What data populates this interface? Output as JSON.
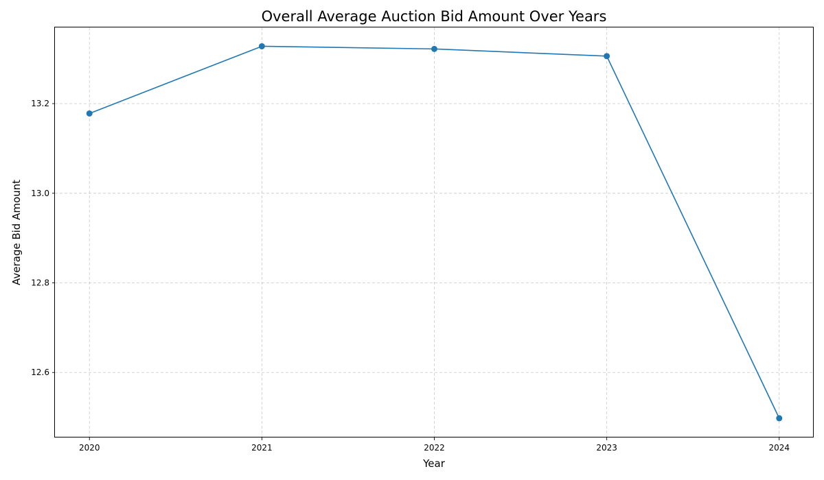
{
  "chart_data": {
    "type": "line",
    "title": "Overall Average Auction Bid Amount Over Years",
    "xlabel": "Year",
    "ylabel": "Average Bid Amount",
    "x": [
      "2020",
      "2021",
      "2022",
      "2023",
      "2024"
    ],
    "series": [
      {
        "values": [
          13.178,
          13.328,
          13.322,
          13.306,
          12.498
        ],
        "color": "#1f77b4"
      }
    ],
    "xlim": [
      -0.2,
      4.2
    ],
    "ylim": [
      12.455,
      13.37
    ],
    "yticks": [
      "12.6",
      "12.8",
      "13.0",
      "13.2"
    ],
    "grid": true,
    "marker": "circle"
  }
}
